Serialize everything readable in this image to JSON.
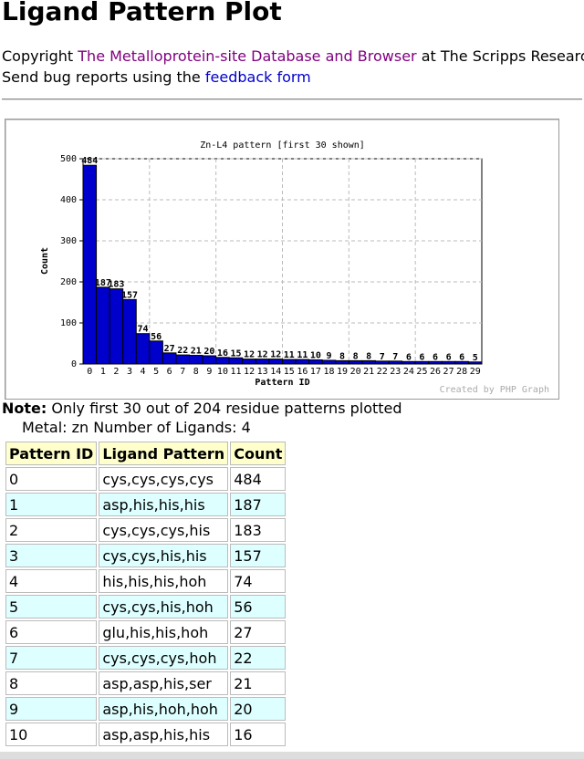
{
  "header": {
    "title": "Ligand Pattern Plot",
    "copyright_prefix": "Copyright",
    "copyright_link": "The Metalloprotein-site Database and Browser",
    "copyright_suffix": "at The Scripps Research",
    "bug_prefix": "Send bug reports using the",
    "bug_link": "feedback form"
  },
  "chart_data": {
    "type": "bar",
    "title": "Zn-L4 pattern [first 30 shown]",
    "x_label": "Pattern ID",
    "y_label": "Count",
    "credit": "Created by PHP Graph",
    "categories": [
      "0",
      "1",
      "2",
      "3",
      "4",
      "5",
      "6",
      "7",
      "8",
      "9",
      "10",
      "11",
      "12",
      "13",
      "14",
      "15",
      "16",
      "17",
      "18",
      "19",
      "20",
      "21",
      "22",
      "23",
      "24",
      "25",
      "26",
      "27",
      "28",
      "29"
    ],
    "values": [
      484,
      187,
      183,
      157,
      74,
      56,
      27,
      22,
      21,
      20,
      16,
      15,
      12,
      12,
      12,
      11,
      11,
      10,
      9,
      8,
      8,
      8,
      7,
      7,
      6,
      6,
      6,
      6,
      6,
      5
    ],
    "color": "#0000cc",
    "ylim": [
      0,
      500
    ],
    "yticks": [
      0,
      100,
      200,
      300,
      400,
      500
    ],
    "grid": true
  },
  "note": {
    "label": "Note:",
    "text": "Only first 30 out of 204 residue patterns plotted"
  },
  "metal_line": "Metal: zn Number of Ligands: 4",
  "table": {
    "headers": [
      "Pattern ID",
      "Ligand Pattern",
      "Count"
    ],
    "ligands": [
      "cys,cys,cys,cys",
      "asp,his,his,his",
      "cys,cys,cys,his",
      "cys,cys,his,his",
      "his,his,his,hoh",
      "cys,cys,his,hoh",
      "glu,his,his,hoh",
      "cys,cys,cys,hoh",
      "asp,asp,his,ser",
      "asp,his,hoh,hoh",
      "asp,asp,his,his"
    ]
  }
}
